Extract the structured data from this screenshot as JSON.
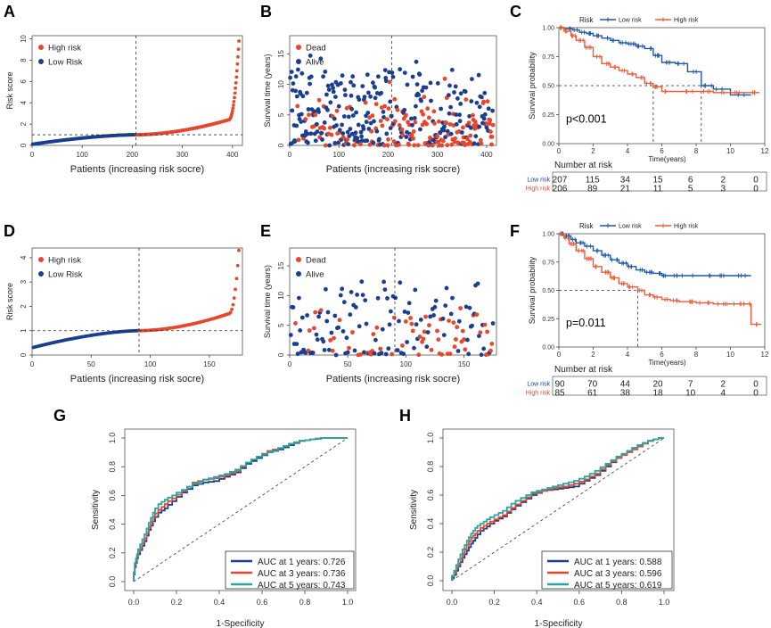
{
  "figure": {
    "panel_labels": [
      "A",
      "B",
      "C",
      "D",
      "E",
      "F",
      "G",
      "H"
    ]
  },
  "colors": {
    "high": "#e8472c",
    "low": "#1b3f8f",
    "auc1": "#1b3f8f",
    "auc3": "#e8472c",
    "auc5": "#2aa6a0",
    "km_low": "#1e57a8",
    "km_high": "#ee5b3a"
  },
  "chart_data": [
    {
      "panel": "A",
      "type": "scatter",
      "title": "",
      "xlabel": "Patients (increasing risk socre)",
      "ylabel": "Risk score",
      "xlim": [
        0,
        420
      ],
      "ylim": [
        0,
        10.3
      ],
      "xticks": [
        "0",
        "100",
        "200",
        "300",
        "400"
      ],
      "yticks": [
        "0",
        "2",
        "4",
        "6",
        "8",
        "10"
      ],
      "n_low": 207,
      "n_high": 206,
      "cutoff_score": 1.0,
      "curve_shape": {
        "min": 0.1,
        "mid": 1.0,
        "p90": 2.4,
        "max": 9.8
      },
      "legend": [
        "High risk",
        "Low Risk"
      ],
      "series": [
        {
          "name": "High risk",
          "group": "high"
        },
        {
          "name": "Low Risk",
          "group": "low"
        }
      ]
    },
    {
      "panel": "B",
      "type": "scatter",
      "title": "",
      "xlabel": "Patients (increasing risk socre)",
      "ylabel": "Survival time (years)",
      "xlim": [
        0,
        420
      ],
      "ylim": [
        0,
        18
      ],
      "xticks": [
        "0",
        "100",
        "200",
        "300",
        "400"
      ],
      "yticks": [
        "0",
        "5",
        "10",
        "15"
      ],
      "n": 413,
      "cutoff_index": 207,
      "legend": [
        "Dead",
        "Alive"
      ],
      "series": [
        {
          "name": "Dead",
          "group": "dead"
        },
        {
          "name": "Alive",
          "group": "alive"
        }
      ]
    },
    {
      "panel": "C",
      "type": "line",
      "title": "",
      "xlabel": "Time(years)",
      "ylabel": "Survival probability",
      "legend_title": "Risk",
      "legend": [
        "Low risk",
        "High risk"
      ],
      "xlim": [
        0,
        12
      ],
      "ylim": [
        0,
        1
      ],
      "xticks": [
        "0",
        "2",
        "4",
        "6",
        "8",
        "10",
        "12"
      ],
      "yticks": [
        "0.00",
        "0.25",
        "0.50",
        "0.75",
        "1.00"
      ],
      "p_value": "p<0.001",
      "median_survival": {
        "Low risk": 8.3,
        "High risk": 5.5
      },
      "series": [
        {
          "name": "Low risk",
          "x": [
            0,
            0.3,
            0.8,
            1.2,
            1.6,
            2.0,
            2.5,
            3.0,
            3.5,
            4.0,
            4.5,
            5.0,
            5.5,
            6.0,
            6.8,
            7.5,
            8.3,
            9.0,
            10.0,
            11.2
          ],
          "y": [
            1.0,
            0.99,
            0.98,
            0.96,
            0.95,
            0.93,
            0.91,
            0.89,
            0.87,
            0.86,
            0.84,
            0.82,
            0.76,
            0.7,
            0.69,
            0.62,
            0.5,
            0.47,
            0.42,
            0.42
          ]
        },
        {
          "name": "High risk",
          "x": [
            0,
            0.3,
            0.7,
            1.0,
            1.5,
            2.0,
            2.5,
            3.0,
            3.5,
            4.0,
            4.5,
            5.0,
            5.5,
            6.0,
            7.0,
            8.0,
            9.0,
            10.0,
            11.0,
            11.7
          ],
          "y": [
            1.0,
            0.97,
            0.93,
            0.89,
            0.83,
            0.75,
            0.69,
            0.66,
            0.63,
            0.6,
            0.57,
            0.52,
            0.49,
            0.45,
            0.45,
            0.45,
            0.44,
            0.44,
            0.44,
            0.44
          ]
        }
      ],
      "number_at_risk": {
        "title": "Number at risk",
        "rows": [
          {
            "label": "Low risk",
            "values": [
              "207",
              "115",
              "34",
              "15",
              "6",
              "2",
              "0"
            ]
          },
          {
            "label": "High risk",
            "values": [
              "206",
              "89",
              "21",
              "11",
              "5",
              "3",
              "0"
            ]
          }
        ]
      }
    },
    {
      "panel": "D",
      "type": "scatter",
      "title": "",
      "xlabel": "Patients (increasing risk socre)",
      "ylabel": "Risk score",
      "xlim": [
        0,
        178
      ],
      "ylim": [
        0,
        4.4
      ],
      "xticks": [
        "0",
        "50",
        "100",
        "150"
      ],
      "yticks": [
        "0",
        "1",
        "2",
        "3",
        "4"
      ],
      "n_low": 90,
      "n_high": 85,
      "cutoff_score": 1.0,
      "curve_shape": {
        "min": 0.3,
        "mid": 1.0,
        "p90": 1.7,
        "max": 4.3
      },
      "legend": [
        "High risk",
        "Low Risk"
      ],
      "series": [
        {
          "name": "High risk",
          "group": "high"
        },
        {
          "name": "Low Risk",
          "group": "low"
        }
      ]
    },
    {
      "panel": "E",
      "type": "scatter",
      "title": "",
      "xlabel": "Patients (increasing risk socre)",
      "ylabel": "Survival time (years)",
      "xlim": [
        0,
        178
      ],
      "ylim": [
        0,
        18
      ],
      "xticks": [
        "0",
        "50",
        "100",
        "150"
      ],
      "yticks": [
        "0",
        "5",
        "10",
        "15"
      ],
      "n": 175,
      "cutoff_index": 90,
      "legend": [
        "Dead",
        "Alive"
      ],
      "series": [
        {
          "name": "Dead",
          "group": "dead"
        },
        {
          "name": "Alive",
          "group": "alive"
        }
      ]
    },
    {
      "panel": "F",
      "type": "line",
      "title": "",
      "xlabel": "Time(years)",
      "ylabel": "Survival probability",
      "legend_title": "Risk",
      "legend": [
        "Low risk",
        "High risk"
      ],
      "xlim": [
        0,
        12
      ],
      "ylim": [
        0,
        1
      ],
      "xticks": [
        "0",
        "2",
        "4",
        "6",
        "8",
        "10",
        "12"
      ],
      "yticks": [
        "0.00",
        "0.25",
        "0.50",
        "0.75",
        "1.00"
      ],
      "p_value": "p=0.011",
      "median_survival": {
        "High risk": 4.6
      },
      "series": [
        {
          "name": "Low risk",
          "x": [
            0,
            0.3,
            0.7,
            1.0,
            1.5,
            2.0,
            2.5,
            3.0,
            3.5,
            4.0,
            4.5,
            5.0,
            5.5,
            6.0,
            6.5,
            7.0,
            8.0,
            9.0,
            10.0,
            11.2
          ],
          "y": [
            1.0,
            0.98,
            0.95,
            0.92,
            0.89,
            0.85,
            0.81,
            0.77,
            0.74,
            0.71,
            0.68,
            0.66,
            0.65,
            0.63,
            0.63,
            0.63,
            0.63,
            0.63,
            0.63,
            0.63
          ]
        },
        {
          "name": "High risk",
          "x": [
            0,
            0.3,
            0.6,
            1.0,
            1.5,
            2.0,
            2.5,
            3.0,
            3.5,
            4.0,
            4.6,
            5.0,
            5.5,
            6.0,
            6.5,
            7.0,
            8.0,
            9.0,
            10.0,
            11.0,
            11.2,
            11.8
          ],
          "y": [
            1.0,
            0.96,
            0.91,
            0.85,
            0.78,
            0.71,
            0.66,
            0.61,
            0.56,
            0.53,
            0.5,
            0.46,
            0.44,
            0.42,
            0.41,
            0.4,
            0.39,
            0.38,
            0.38,
            0.38,
            0.2,
            0.2
          ]
        }
      ],
      "number_at_risk": {
        "title": "Number at risk",
        "rows": [
          {
            "label": "Low risk",
            "values": [
              "90",
              "70",
              "44",
              "20",
              "7",
              "2",
              "0"
            ]
          },
          {
            "label": "High risk",
            "values": [
              "85",
              "61",
              "38",
              "18",
              "10",
              "4",
              "0"
            ]
          }
        ]
      }
    },
    {
      "panel": "G",
      "type": "line",
      "title": "",
      "xlabel": "1-Specificity",
      "ylabel": "Sensitivity",
      "xlim": [
        0,
        1
      ],
      "ylim": [
        0,
        1
      ],
      "xticks": [
        "0.0",
        "0.2",
        "0.4",
        "0.6",
        "0.8",
        "1.0"
      ],
      "yticks": [
        "0.0",
        "0.2",
        "0.4",
        "0.6",
        "0.8",
        "1.0"
      ],
      "legend": [
        "AUC at 1 years: 0.726",
        "AUC at 3 years: 0.736",
        "AUC at 5 years: 0.743"
      ],
      "series": [
        {
          "name": "AUC at 1 years: 0.726",
          "x": [
            0,
            0.01,
            0.02,
            0.04,
            0.06,
            0.08,
            0.1,
            0.13,
            0.16,
            0.2,
            0.25,
            0.3,
            0.35,
            0.4,
            0.45,
            0.5,
            0.55,
            0.6,
            0.65,
            0.7,
            0.75,
            0.8,
            0.85,
            0.9,
            0.95,
            1.0
          ],
          "y": [
            0,
            0.1,
            0.16,
            0.22,
            0.28,
            0.36,
            0.42,
            0.48,
            0.51,
            0.56,
            0.62,
            0.67,
            0.69,
            0.7,
            0.73,
            0.76,
            0.82,
            0.86,
            0.9,
            0.92,
            0.95,
            0.98,
            0.99,
            1.0,
            1.0,
            1.0
          ]
        },
        {
          "name": "AUC at 3 years: 0.736",
          "x": [
            0,
            0.01,
            0.02,
            0.04,
            0.06,
            0.08,
            0.1,
            0.13,
            0.16,
            0.2,
            0.25,
            0.3,
            0.35,
            0.4,
            0.45,
            0.5,
            0.55,
            0.6,
            0.65,
            0.7,
            0.75,
            0.8,
            0.85,
            0.9,
            0.95,
            1.0
          ],
          "y": [
            0,
            0.12,
            0.18,
            0.24,
            0.3,
            0.38,
            0.45,
            0.5,
            0.54,
            0.58,
            0.63,
            0.69,
            0.71,
            0.72,
            0.74,
            0.77,
            0.83,
            0.87,
            0.91,
            0.93,
            0.96,
            0.98,
            0.99,
            1.0,
            1.0,
            1.0
          ]
        },
        {
          "name": "AUC at 5 years: 0.743",
          "x": [
            0,
            0.01,
            0.02,
            0.04,
            0.06,
            0.08,
            0.1,
            0.13,
            0.16,
            0.2,
            0.25,
            0.3,
            0.35,
            0.4,
            0.45,
            0.5,
            0.55,
            0.6,
            0.65,
            0.7,
            0.75,
            0.8,
            0.85,
            0.9,
            0.95,
            1.0
          ],
          "y": [
            0,
            0.13,
            0.19,
            0.26,
            0.33,
            0.41,
            0.48,
            0.54,
            0.57,
            0.6,
            0.64,
            0.68,
            0.71,
            0.73,
            0.75,
            0.78,
            0.83,
            0.87,
            0.9,
            0.93,
            0.96,
            0.98,
            0.99,
            1.0,
            1.0,
            1.0
          ]
        }
      ]
    },
    {
      "panel": "H",
      "type": "line",
      "title": "",
      "xlabel": "1-Specificity",
      "ylabel": "Sensitivity",
      "xlim": [
        0,
        1
      ],
      "ylim": [
        0,
        1
      ],
      "xticks": [
        "0.0",
        "0.2",
        "0.4",
        "0.6",
        "0.8",
        "1.0"
      ],
      "yticks": [
        "0.0",
        "0.2",
        "0.4",
        "0.6",
        "0.8",
        "1.0"
      ],
      "legend": [
        "AUC at 1 years: 0.588",
        "AUC at 3 years: 0.596",
        "AUC at 5 years: 0.619"
      ],
      "series": [
        {
          "name": "AUC at 1 years: 0.588",
          "x": [
            0,
            0.02,
            0.04,
            0.06,
            0.08,
            0.1,
            0.12,
            0.15,
            0.18,
            0.22,
            0.26,
            0.3,
            0.35,
            0.4,
            0.45,
            0.5,
            0.55,
            0.6,
            0.65,
            0.7,
            0.75,
            0.8,
            0.85,
            0.9,
            0.95,
            1.0
          ],
          "y": [
            0,
            0.04,
            0.1,
            0.16,
            0.21,
            0.26,
            0.3,
            0.35,
            0.38,
            0.42,
            0.45,
            0.5,
            0.55,
            0.6,
            0.63,
            0.64,
            0.65,
            0.66,
            0.7,
            0.74,
            0.8,
            0.86,
            0.91,
            0.95,
            0.98,
            1.0
          ]
        },
        {
          "name": "AUC at 3 years: 0.596",
          "x": [
            0,
            0.02,
            0.04,
            0.06,
            0.08,
            0.1,
            0.12,
            0.15,
            0.18,
            0.22,
            0.26,
            0.3,
            0.35,
            0.4,
            0.45,
            0.5,
            0.55,
            0.6,
            0.65,
            0.7,
            0.75,
            0.8,
            0.85,
            0.9,
            0.95,
            1.0
          ],
          "y": [
            0,
            0.06,
            0.12,
            0.19,
            0.25,
            0.3,
            0.33,
            0.37,
            0.4,
            0.43,
            0.46,
            0.51,
            0.56,
            0.61,
            0.63,
            0.65,
            0.66,
            0.68,
            0.71,
            0.75,
            0.81,
            0.86,
            0.9,
            0.94,
            0.98,
            1.0
          ]
        },
        {
          "name": "AUC at 5 years: 0.619",
          "x": [
            0,
            0.02,
            0.04,
            0.06,
            0.08,
            0.1,
            0.12,
            0.15,
            0.18,
            0.22,
            0.26,
            0.3,
            0.35,
            0.4,
            0.45,
            0.5,
            0.55,
            0.6,
            0.65,
            0.7,
            0.75,
            0.8,
            0.85,
            0.9,
            0.95,
            1.0
          ],
          "y": [
            0,
            0.07,
            0.15,
            0.22,
            0.28,
            0.33,
            0.37,
            0.4,
            0.43,
            0.46,
            0.49,
            0.54,
            0.58,
            0.62,
            0.64,
            0.66,
            0.68,
            0.7,
            0.73,
            0.77,
            0.82,
            0.87,
            0.91,
            0.95,
            0.98,
            1.0
          ]
        }
      ]
    }
  ]
}
